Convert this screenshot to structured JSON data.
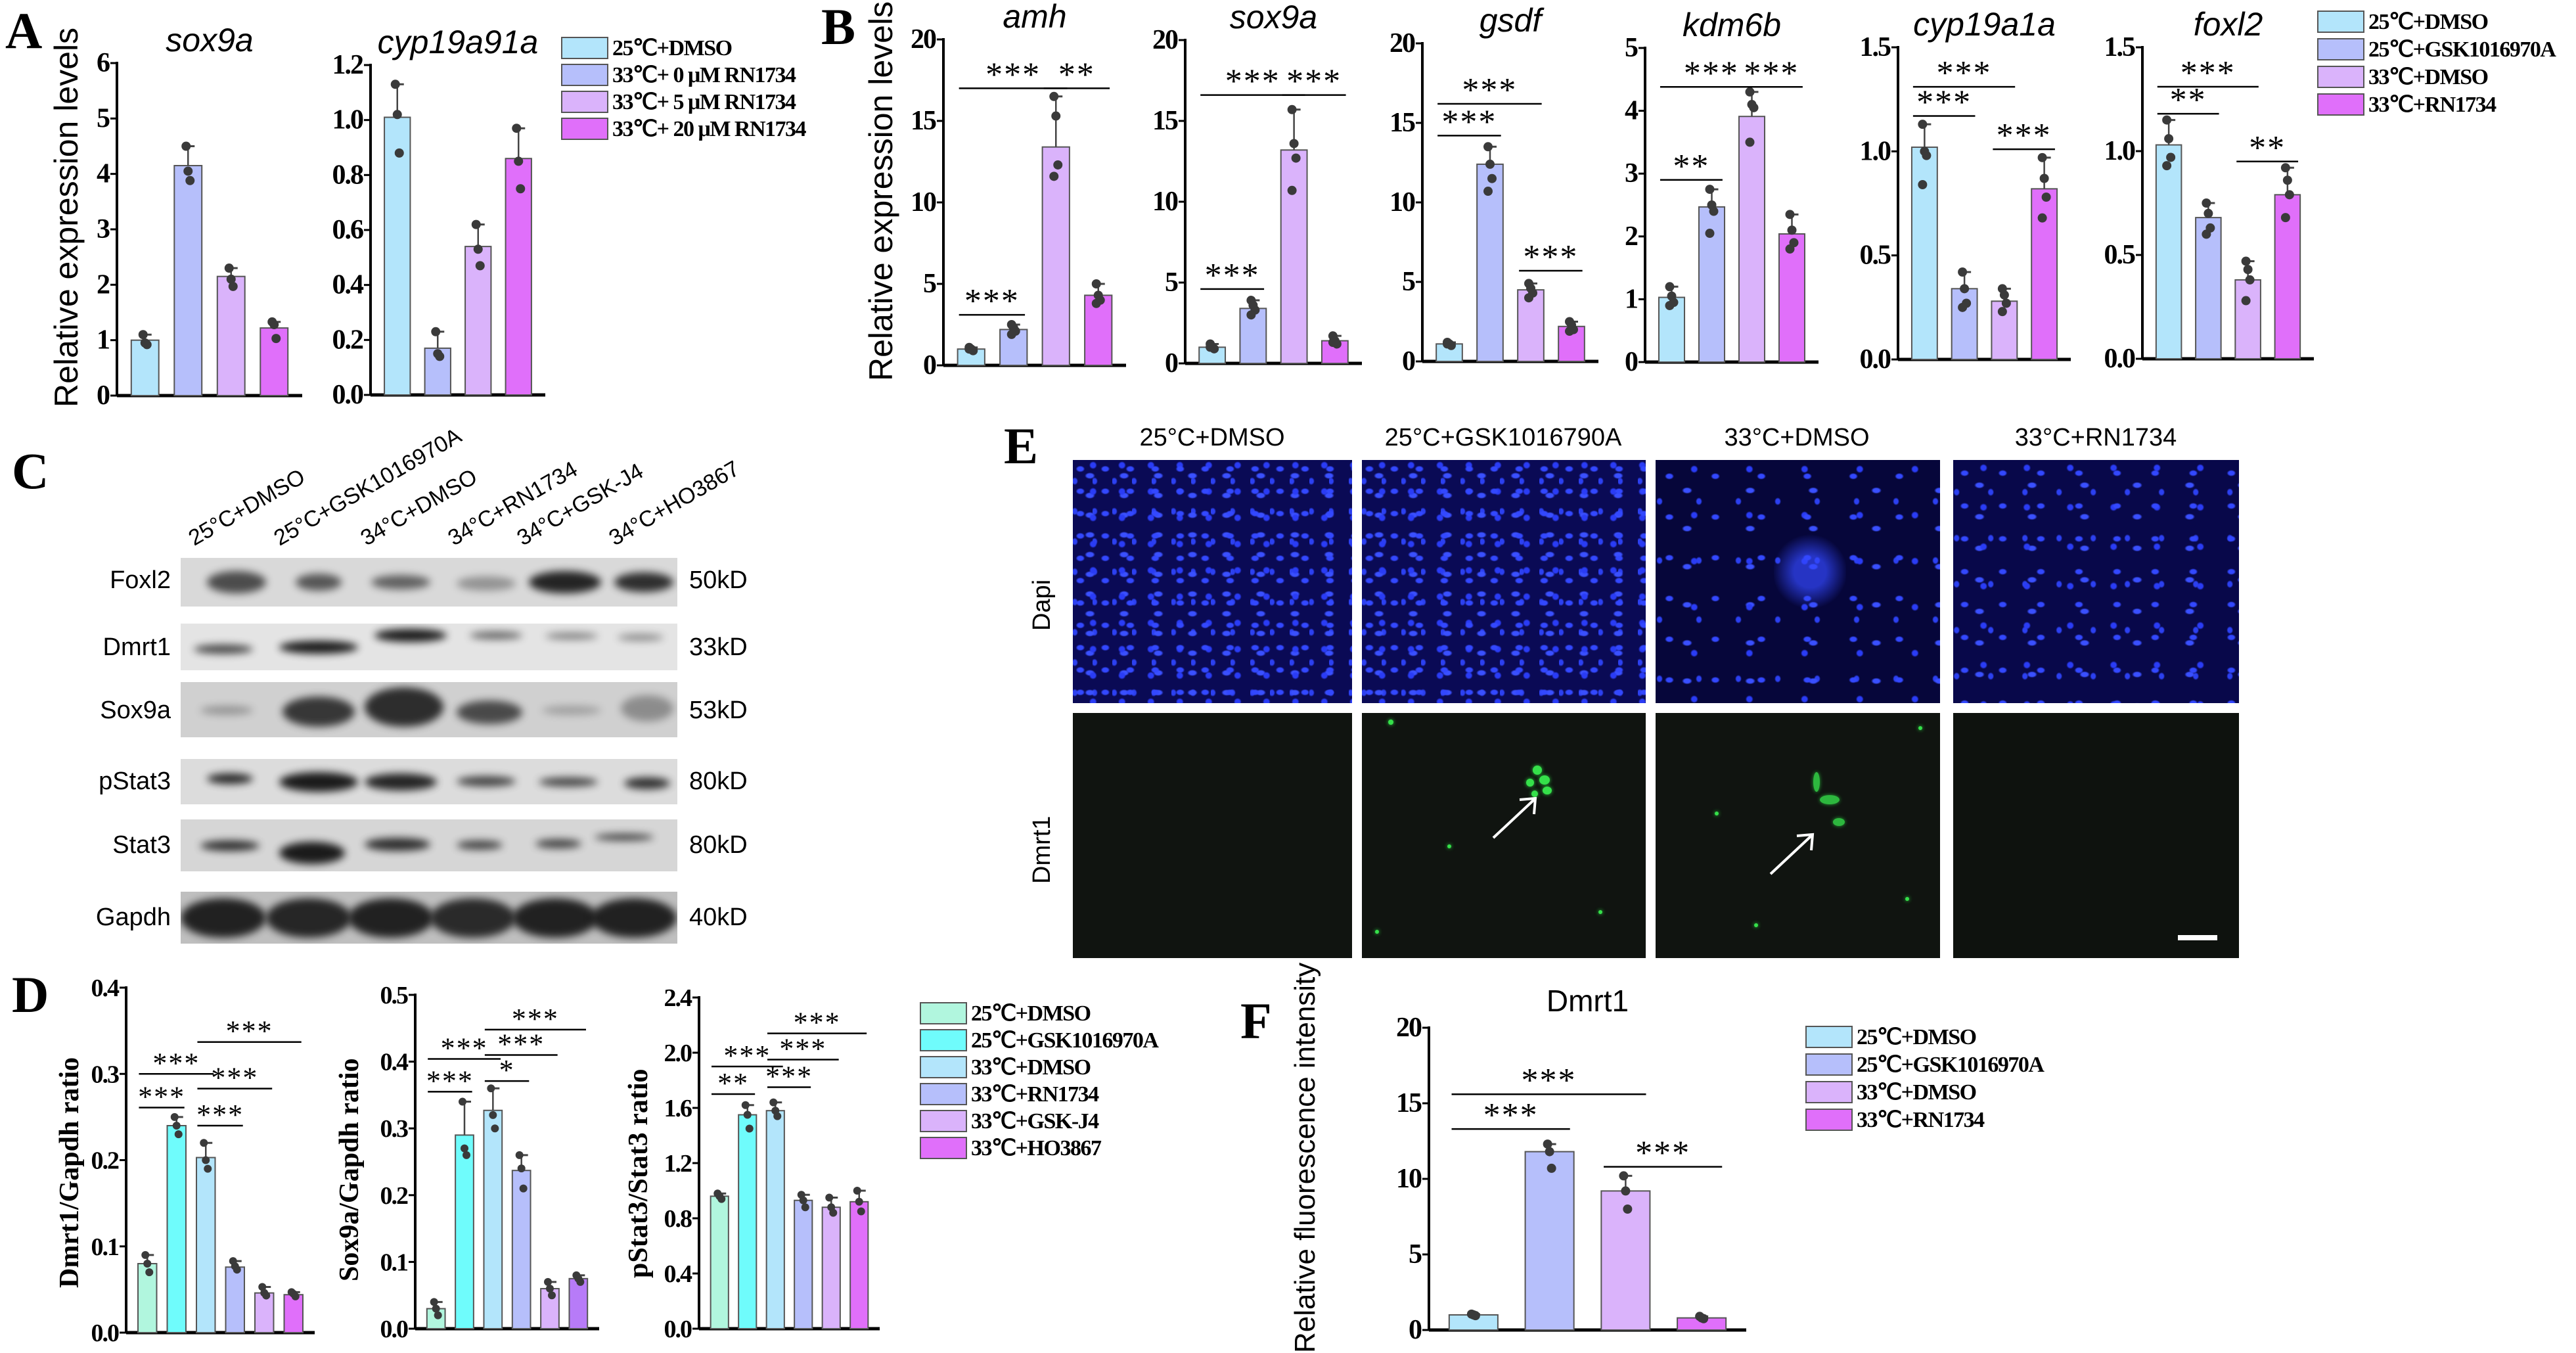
{
  "panels": {
    "a": "A",
    "b": "B",
    "c": "C",
    "d": "D",
    "e": "E",
    "f": "F"
  },
  "ylabels": {
    "a": "Relative expression levels",
    "b": "Relative expression levels",
    "d1": "Dmrt1/Gapdh ratio",
    "d2": "Sox9a/Gapdh ratio",
    "d3": "pStat3/Stat3 ratio",
    "f": "Relative fluorescence intensity"
  },
  "legends": {
    "a": {
      "items": [
        "25℃+DMSO",
        "33℃+ 0 μM RN1734",
        "33℃+ 5 μM RN1734",
        "33℃+ 20 μM RN1734"
      ],
      "colors": [
        "#b3e5fb",
        "#b6bffb",
        "#dab3fb",
        "#e06ffa"
      ]
    },
    "b": {
      "items": [
        "25℃+DMSO",
        "25℃+GSK1016970A",
        "33℃+DMSO",
        "33℃+RN1734"
      ],
      "colors": [
        "#b3e5fb",
        "#b6bffb",
        "#dab3fb",
        "#e06ffa"
      ]
    },
    "d": {
      "items": [
        "25℃+DMSO",
        "25℃+GSK1016970A",
        "33℃+DMSO",
        "33℃+RN1734",
        "33℃+GSK-J4",
        "33℃+HO3867"
      ],
      "colors": [
        "#b1f6de",
        "#6ffcfc",
        "#b3e5fb",
        "#b6bffb",
        "#dab3fb",
        "#e06ffa"
      ]
    },
    "f": {
      "items": [
        "25℃+DMSO",
        "25℃+GSK1016970A",
        "33℃+DMSO",
        "33℃+RN1734"
      ],
      "colors": [
        "#b3e5fb",
        "#b6bffb",
        "#dab3fb",
        "#e06ffa"
      ]
    }
  },
  "blot": {
    "lanes": [
      "25°C+DMSO",
      "25°C+GSK1016970A",
      "34°C+DMSO",
      "34°C+RN1734",
      "34°C+GSK-J4",
      "34°C+HO3867"
    ],
    "rows": [
      {
        "label": "Foxl2",
        "kd": "50kD"
      },
      {
        "label": "Dmrt1",
        "kd": "33kD"
      },
      {
        "label": "Sox9a",
        "kd": "53kD"
      },
      {
        "label": "pStat3",
        "kd": "80kD"
      },
      {
        "label": "Stat3",
        "kd": "80kD"
      },
      {
        "label": "Gapdh",
        "kd": "40kD"
      }
    ]
  },
  "fluor": {
    "columns": [
      "25°C+DMSO",
      "25°C+GSK1016790A",
      "33°C+DMSO",
      "33°C+RN1734"
    ],
    "rows": [
      "Dapi",
      "Dmrt1"
    ]
  },
  "chart_data": [
    {
      "id": "A1",
      "type": "bar",
      "title": "sox9a",
      "ylim": [
        0,
        6
      ],
      "yticks": [
        "0",
        "1",
        "2",
        "3",
        "4",
        "5",
        "6"
      ],
      "categories": [
        "25℃+DMSO",
        "33℃+ 0 μM RN1734",
        "33℃+ 5 μM RN1734",
        "33℃+ 20 μM RN1734"
      ],
      "colors": [
        "#b3e5fb",
        "#b6bffb",
        "#dab3fb",
        "#e06ffa"
      ],
      "values": [
        1.0,
        4.15,
        2.15,
        1.22
      ],
      "points": [
        [
          1.1,
          0.95,
          0.92
        ],
        [
          4.5,
          4.05,
          3.88
        ],
        [
          2.3,
          2.1,
          1.97
        ],
        [
          1.33,
          1.28,
          1.03
        ]
      ],
      "sig": []
    },
    {
      "id": "A2",
      "type": "bar",
      "title": "cyp19a91a",
      "ylim": [
        0,
        1.2
      ],
      "yticks": [
        "0.0",
        "0.2",
        "0.4",
        "0.6",
        "0.8",
        "1.0",
        "1.2"
      ],
      "categories": [
        "25℃+DMSO",
        "33℃+ 0 μM RN1734",
        "33℃+ 5 μM RN1734",
        "33℃+ 20 μM RN1734"
      ],
      "colors": [
        "#b3e5fb",
        "#b6bffb",
        "#dab3fb",
        "#e06ffa"
      ],
      "values": [
        1.01,
        0.17,
        0.54,
        0.86
      ],
      "points": [
        [
          1.13,
          1.02,
          0.88
        ],
        [
          0.23,
          0.15,
          0.14
        ],
        [
          0.62,
          0.53,
          0.47
        ],
        [
          0.97,
          0.85,
          0.75
        ]
      ],
      "sig": []
    },
    {
      "id": "B1",
      "type": "bar",
      "title": "amh",
      "ylim": [
        0,
        20
      ],
      "yticks": [
        "0",
        "5",
        "10",
        "15",
        "20"
      ],
      "categories": [
        "25℃+DMSO",
        "25℃+GSK1016970A",
        "33℃+DMSO",
        "33℃+RN1734"
      ],
      "colors": [
        "#b3e5fb",
        "#b6bffb",
        "#dab3fb",
        "#e06ffa"
      ],
      "values": [
        1.0,
        2.2,
        13.4,
        4.3
      ],
      "points": [
        [
          1.1,
          1.0,
          0.9,
          1.0
        ],
        [
          2.5,
          2.3,
          2.1,
          1.9
        ],
        [
          16.5,
          15.3,
          12.3,
          11.6
        ],
        [
          5.0,
          4.3,
          4.0,
          3.8
        ]
      ],
      "sig": [
        {
          "from": 0,
          "to": 1,
          "label": "***",
          "y": 3.1
        },
        {
          "from": 0,
          "to": 2,
          "label": "***",
          "y": 17.0
        },
        {
          "from": 2,
          "to": 3,
          "label": "**",
          "y": 17.0
        }
      ]
    },
    {
      "id": "B2",
      "type": "bar",
      "title": "sox9a",
      "ylim": [
        0,
        20
      ],
      "yticks": [
        "0",
        "5",
        "10",
        "15",
        "20"
      ],
      "categories": [
        "25℃+DMSO",
        "25℃+GSK1016970A",
        "33℃+DMSO",
        "33℃+RN1734"
      ],
      "colors": [
        "#b3e5fb",
        "#b6bffb",
        "#dab3fb",
        "#e06ffa"
      ],
      "values": [
        1.0,
        3.4,
        13.2,
        1.4
      ],
      "points": [
        [
          1.2,
          1.0,
          0.9,
          1.0
        ],
        [
          3.9,
          3.6,
          3.3,
          3.0
        ],
        [
          15.7,
          13.6,
          12.7,
          10.7
        ],
        [
          1.7,
          1.4,
          1.2,
          1.3
        ]
      ],
      "sig": [
        {
          "from": 0,
          "to": 1,
          "label": "***",
          "y": 4.6
        },
        {
          "from": 0,
          "to": 2,
          "label": "***",
          "y": 16.6
        },
        {
          "from": 2,
          "to": 3,
          "label": "***",
          "y": 16.6
        }
      ]
    },
    {
      "id": "B3",
      "type": "bar",
      "title": "gsdf",
      "ylim": [
        0,
        20
      ],
      "yticks": [
        "0",
        "5",
        "10",
        "15",
        "20"
      ],
      "categories": [
        "25℃+DMSO",
        "25℃+GSK1016970A",
        "33℃+DMSO",
        "33℃+RN1734"
      ],
      "colors": [
        "#b3e5fb",
        "#b6bffb",
        "#dab3fb",
        "#e06ffa"
      ],
      "values": [
        1.1,
        12.4,
        4.5,
        2.2
      ],
      "points": [
        [
          1.2,
          1.1,
          1.0,
          1.1
        ],
        [
          13.5,
          12.4,
          11.5,
          10.7
        ],
        [
          4.9,
          4.6,
          4.3,
          4.0
        ],
        [
          2.5,
          2.3,
          2.0,
          1.9
        ]
      ],
      "sig": [
        {
          "from": 0,
          "to": 1,
          "label": "***",
          "y": 14.2
        },
        {
          "from": 0,
          "to": 2,
          "label": "***",
          "y": 16.2
        },
        {
          "from": 2,
          "to": 3,
          "label": "***",
          "y": 5.7
        }
      ]
    },
    {
      "id": "B4",
      "type": "bar",
      "title": "kdm6b",
      "ylim": [
        0,
        5
      ],
      "yticks": [
        "0",
        "1",
        "2",
        "3",
        "4",
        "5"
      ],
      "categories": [
        "25℃+DMSO",
        "25℃+GSK1016970A",
        "33℃+DMSO",
        "33℃+RN1734"
      ],
      "colors": [
        "#b3e5fb",
        "#b6bffb",
        "#dab3fb",
        "#e06ffa"
      ],
      "values": [
        1.03,
        2.47,
        3.91,
        2.04
      ],
      "points": [
        [
          1.2,
          1.05,
          0.95,
          0.9
        ],
        [
          2.75,
          2.5,
          2.4,
          2.05
        ],
        [
          4.3,
          4.1,
          4.05,
          3.5
        ],
        [
          2.35,
          2.1,
          1.9,
          1.8
        ]
      ],
      "sig": [
        {
          "from": 0,
          "to": 1,
          "label": "**",
          "y": 2.9
        },
        {
          "from": 0,
          "to": 2,
          "label": "***",
          "y": 4.38
        },
        {
          "from": 2,
          "to": 3,
          "label": "***",
          "y": 4.38
        }
      ]
    },
    {
      "id": "B5",
      "type": "bar",
      "title": "cyp19a1a",
      "ylim": [
        0,
        1.5
      ],
      "yticks": [
        "0.0",
        "0.5",
        "1.0",
        "1.5"
      ],
      "categories": [
        "25℃+DMSO",
        "25℃+GSK1016970A",
        "33℃+DMSO",
        "33℃+RN1734"
      ],
      "colors": [
        "#b3e5fb",
        "#b6bffb",
        "#dab3fb",
        "#e06ffa"
      ],
      "values": [
        1.02,
        0.34,
        0.28,
        0.82
      ],
      "points": [
        [
          1.13,
          1.0,
          0.98,
          0.84
        ],
        [
          0.42,
          0.34,
          0.27,
          0.25
        ],
        [
          0.34,
          0.31,
          0.27,
          0.23
        ],
        [
          0.97,
          0.87,
          0.78,
          0.68
        ]
      ],
      "sig": [
        {
          "from": 0,
          "to": 1,
          "label": "***",
          "y": 1.17
        },
        {
          "from": 0,
          "to": 2,
          "label": "***",
          "y": 1.31
        },
        {
          "from": 2,
          "to": 3,
          "label": "***",
          "y": 1.01
        }
      ]
    },
    {
      "id": "B6",
      "type": "bar",
      "title": "foxl2",
      "ylim": [
        0,
        1.5
      ],
      "yticks": [
        "0.0",
        "0.5",
        "1.0",
        "1.5"
      ],
      "categories": [
        "25℃+DMSO",
        "25℃+GSK1016970A",
        "33℃+DMSO",
        "33℃+RN1734"
      ],
      "colors": [
        "#b3e5fb",
        "#b6bffb",
        "#dab3fb",
        "#e06ffa"
      ],
      "values": [
        1.03,
        0.68,
        0.38,
        0.79
      ],
      "points": [
        [
          1.15,
          1.06,
          0.97,
          0.93
        ],
        [
          0.75,
          0.7,
          0.63,
          0.6
        ],
        [
          0.47,
          0.43,
          0.38,
          0.28
        ],
        [
          0.92,
          0.86,
          0.79,
          0.68
        ]
      ],
      "sig": [
        {
          "from": 0,
          "to": 1,
          "label": "**",
          "y": 1.18
        },
        {
          "from": 0,
          "to": 2,
          "label": "***",
          "y": 1.31
        },
        {
          "from": 2,
          "to": 3,
          "label": "**",
          "y": 0.95
        }
      ]
    },
    {
      "id": "D1",
      "type": "bar",
      "title": "",
      "ylim": [
        0,
        0.4
      ],
      "yticks": [
        "0.0",
        "0.1",
        "0.2",
        "0.3",
        "0.4"
      ],
      "categories": [
        "25℃+DMSO",
        "25℃+GSK1016970A",
        "33℃+DMSO",
        "33℃+RN1734",
        "33℃+GSK-J4",
        "33℃+HO3867"
      ],
      "colors": [
        "#b1f6de",
        "#6ffcfc",
        "#b3e5fb",
        "#b6bffb",
        "#dab3fb",
        "#e06ffa"
      ],
      "values": [
        0.08,
        0.24,
        0.203,
        0.076,
        0.046,
        0.044
      ],
      "points": [
        [
          0.09,
          0.08,
          0.07
        ],
        [
          0.25,
          0.24,
          0.23
        ],
        [
          0.22,
          0.2,
          0.19
        ],
        [
          0.083,
          0.077,
          0.073
        ],
        [
          0.053,
          0.046,
          0.043
        ],
        [
          0.047,
          0.045,
          0.042
        ]
      ],
      "sig": [
        {
          "from": 0,
          "to": 1,
          "label": "***",
          "y": 0.261
        },
        {
          "from": 0,
          "to": 2,
          "label": "***",
          "y": 0.3
        },
        {
          "from": 2,
          "to": 3,
          "label": "***",
          "y": 0.24
        },
        {
          "from": 2,
          "to": 4,
          "label": "***",
          "y": 0.283
        },
        {
          "from": 2,
          "to": 5,
          "label": "***",
          "y": 0.337
        }
      ]
    },
    {
      "id": "D2",
      "type": "bar",
      "title": "",
      "ylim": [
        0,
        0.5
      ],
      "yticks": [
        "0.0",
        "0.1",
        "0.2",
        "0.3",
        "0.4",
        "0.5"
      ],
      "categories": [
        "25℃+DMSO",
        "25℃+GSK1016970A",
        "33℃+DMSO",
        "33℃+RN1734",
        "33℃+GSK-J4",
        "33℃+HO3867"
      ],
      "colors": [
        "#b1f6de",
        "#6ffcfc",
        "#b3e5fb",
        "#b6bffb",
        "#dab3fb",
        "#b77bf8"
      ],
      "values": [
        0.03,
        0.29,
        0.327,
        0.237,
        0.06,
        0.075
      ],
      "points": [
        [
          0.04,
          0.03,
          0.02
        ],
        [
          0.34,
          0.27,
          0.26
        ],
        [
          0.36,
          0.32,
          0.3
        ],
        [
          0.26,
          0.24,
          0.21
        ],
        [
          0.07,
          0.06,
          0.05
        ],
        [
          0.08,
          0.075,
          0.07
        ]
      ],
      "sig": [
        {
          "from": 0,
          "to": 1,
          "label": "***",
          "y": 0.355
        },
        {
          "from": 0,
          "to": 2,
          "label": "***",
          "y": 0.404
        },
        {
          "from": 2,
          "to": 3,
          "label": "*",
          "y": 0.371
        },
        {
          "from": 2,
          "to": 4,
          "label": "***",
          "y": 0.41
        },
        {
          "from": 2,
          "to": 5,
          "label": "***",
          "y": 0.448
        }
      ]
    },
    {
      "id": "D3",
      "type": "bar",
      "title": "",
      "ylim": [
        0,
        2.4
      ],
      "yticks": [
        "0.0",
        "0.4",
        "0.8",
        "1.2",
        "1.6",
        "2.0",
        "2.4"
      ],
      "categories": [
        "25℃+DMSO",
        "25℃+GSK1016970A",
        "33℃+DMSO",
        "33℃+RN1734",
        "33℃+GSK-J4",
        "33℃+HO3867"
      ],
      "colors": [
        "#b1f6de",
        "#6ffcfc",
        "#b3e5fb",
        "#b6bffb",
        "#dab3fb",
        "#e06ffa"
      ],
      "values": [
        0.96,
        1.55,
        1.58,
        0.93,
        0.88,
        0.92
      ],
      "points": [
        [
          0.98,
          0.96,
          0.94
        ],
        [
          1.62,
          1.55,
          1.45
        ],
        [
          1.64,
          1.58,
          1.54
        ],
        [
          0.97,
          0.93,
          0.88
        ],
        [
          0.95,
          0.88,
          0.84
        ],
        [
          1.0,
          0.92,
          0.85
        ]
      ],
      "sig": [
        {
          "from": 0,
          "to": 1,
          "label": "**",
          "y": 1.7
        },
        {
          "from": 0,
          "to": 2,
          "label": "***",
          "y": 1.9
        },
        {
          "from": 2,
          "to": 3,
          "label": "***",
          "y": 1.75
        },
        {
          "from": 2,
          "to": 4,
          "label": "***",
          "y": 1.95
        },
        {
          "from": 2,
          "to": 5,
          "label": "***",
          "y": 2.14
        }
      ]
    },
    {
      "id": "F1",
      "type": "bar",
      "title": "Dmrt1",
      "ylim": [
        0,
        20
      ],
      "yticks": [
        "0",
        "5",
        "10",
        "15",
        "20"
      ],
      "categories": [
        "25℃+DMSO",
        "25℃+GSK1016970A",
        "33℃+DMSO",
        "33℃+RN1734"
      ],
      "colors": [
        "#b3e5fb",
        "#b6bffb",
        "#dab3fb",
        "#e06ffa"
      ],
      "values": [
        1.0,
        11.8,
        9.2,
        0.8
      ],
      "points": [
        [
          1.05,
          1.0,
          0.95
        ],
        [
          12.3,
          11.8,
          10.7
        ],
        [
          10.2,
          9.2,
          8.0
        ],
        [
          0.9,
          0.8,
          0.75
        ]
      ],
      "sig": [
        {
          "from": 0,
          "to": 1,
          "label": "***",
          "y": 13.3
        },
        {
          "from": 0,
          "to": 2,
          "label": "***",
          "y": 15.6
        },
        {
          "from": 2,
          "to": 3,
          "label": "***",
          "y": 10.8
        }
      ]
    }
  ]
}
